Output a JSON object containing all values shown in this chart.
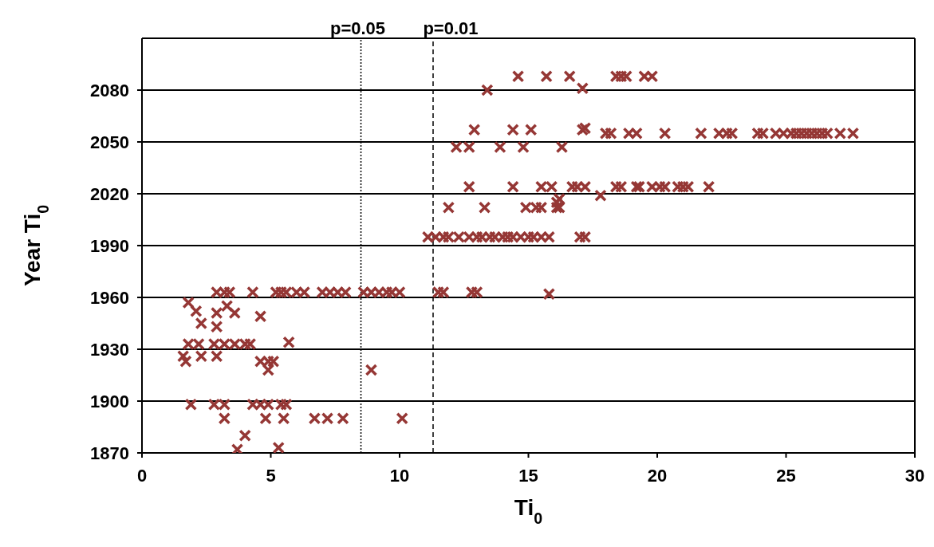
{
  "chart_data": {
    "type": "scatter",
    "xlabel": "Ti$_{0}$",
    "ylabel": "Year Ti$_{0}$",
    "xlim": [
      0,
      30
    ],
    "xticks": [
      0,
      5,
      10,
      15,
      20,
      25,
      30
    ],
    "ylim": [
      1870,
      2110
    ],
    "yticks": [
      1870,
      1900,
      1930,
      1960,
      1990,
      2020,
      2050,
      2080
    ],
    "grid": "y",
    "marker": "cross",
    "ref_lines": [
      {
        "axis": "x",
        "value": 8.5,
        "line_style": "dotted"
      },
      {
        "axis": "x",
        "value": 11.3,
        "line_style": "dashed"
      }
    ],
    "annotations": [
      "p=0.05",
      "p=0.01"
    ],
    "series": [
      {
        "color": "#953735",
        "x": [
          14.6,
          15.7,
          16.6,
          18.4,
          18.6,
          18.8,
          19.5,
          19.8,
          13.4,
          17.1,
          12.9,
          14.4,
          15.1,
          17.1,
          17.2,
          18.0,
          18.2,
          18.9,
          19.2,
          20.3,
          21.7,
          22.4,
          22.7,
          22.9,
          23.9,
          24.1,
          24.6,
          24.9,
          25.2,
          25.4,
          25.6,
          25.8,
          26.0,
          26.2,
          26.4,
          26.6,
          27.1,
          27.6,
          12.2,
          12.7,
          13.9,
          14.8,
          16.3,
          12.7,
          14.4,
          15.5,
          15.9,
          16.7,
          16.9,
          17.2,
          18.4,
          18.6,
          19.2,
          19.3,
          19.8,
          20.1,
          20.3,
          20.8,
          21.0,
          21.2,
          22.0,
          17.8,
          11.9,
          13.3,
          14.9,
          15.3,
          15.5,
          16.1,
          16.2,
          16.2,
          16.1,
          11.1,
          11.4,
          11.7,
          11.9,
          12.3,
          12.7,
          13.0,
          13.2,
          13.5,
          13.7,
          14.0,
          14.2,
          14.4,
          14.7,
          15.0,
          15.2,
          15.5,
          15.8,
          17.0,
          17.2,
          2.9,
          3.2,
          3.4,
          4.3,
          5.2,
          5.4,
          5.6,
          6.0,
          6.3,
          7.0,
          7.3,
          7.6,
          7.9,
          8.6,
          8.9,
          9.2,
          9.5,
          9.7,
          10.0,
          11.5,
          11.7,
          12.8,
          13.0,
          15.8,
          1.8,
          2.1,
          2.3,
          2.9,
          2.9,
          3.3,
          3.6,
          4.6,
          1.8,
          2.2,
          2.8,
          3.2,
          3.6,
          4.0,
          4.2,
          5.7,
          1.6,
          2.3,
          2.9,
          1.7,
          4.6,
          4.9,
          5.1,
          4.9,
          8.9,
          1.9,
          2.8,
          3.2,
          4.3,
          4.6,
          4.9,
          5.4,
          5.6,
          3.2,
          4.8,
          5.5,
          6.7,
          7.2,
          7.8,
          10.1,
          4.0,
          3.7,
          5.3
        ],
        "values": [
          2088,
          2088,
          2088,
          2088,
          2088,
          2088,
          2088,
          2088,
          2080,
          2081,
          2057,
          2057,
          2057,
          2057,
          2058,
          2055,
          2055,
          2055,
          2055,
          2055,
          2055,
          2055,
          2055,
          2055,
          2055,
          2055,
          2055,
          2055,
          2055,
          2055,
          2055,
          2055,
          2055,
          2055,
          2055,
          2055,
          2055,
          2055,
          2047,
          2047,
          2047,
          2047,
          2047,
          2024,
          2024,
          2024,
          2024,
          2024,
          2024,
          2024,
          2024,
          2024,
          2024,
          2024,
          2024,
          2024,
          2024,
          2024,
          2024,
          2024,
          2024,
          2019,
          2012,
          2012,
          2012,
          2012,
          2012,
          2012,
          2012,
          2017,
          2015,
          1995,
          1995,
          1995,
          1995,
          1995,
          1995,
          1995,
          1995,
          1995,
          1995,
          1995,
          1995,
          1995,
          1995,
          1995,
          1995,
          1995,
          1995,
          1995,
          1995,
          1963,
          1963,
          1963,
          1963,
          1963,
          1963,
          1963,
          1963,
          1963,
          1963,
          1963,
          1963,
          1963,
          1963,
          1963,
          1963,
          1963,
          1963,
          1963,
          1963,
          1963,
          1963,
          1963,
          1962,
          1957,
          1952,
          1945,
          1943,
          1951,
          1955,
          1951,
          1949,
          1933,
          1933,
          1933,
          1933,
          1933,
          1933,
          1933,
          1934,
          1926,
          1926,
          1926,
          1923,
          1923,
          1923,
          1923,
          1918,
          1918,
          1898,
          1898,
          1898,
          1898,
          1898,
          1898,
          1898,
          1898,
          1890,
          1890,
          1890,
          1890,
          1890,
          1890,
          1890,
          1880,
          1872,
          1873
        ]
      }
    ]
  }
}
